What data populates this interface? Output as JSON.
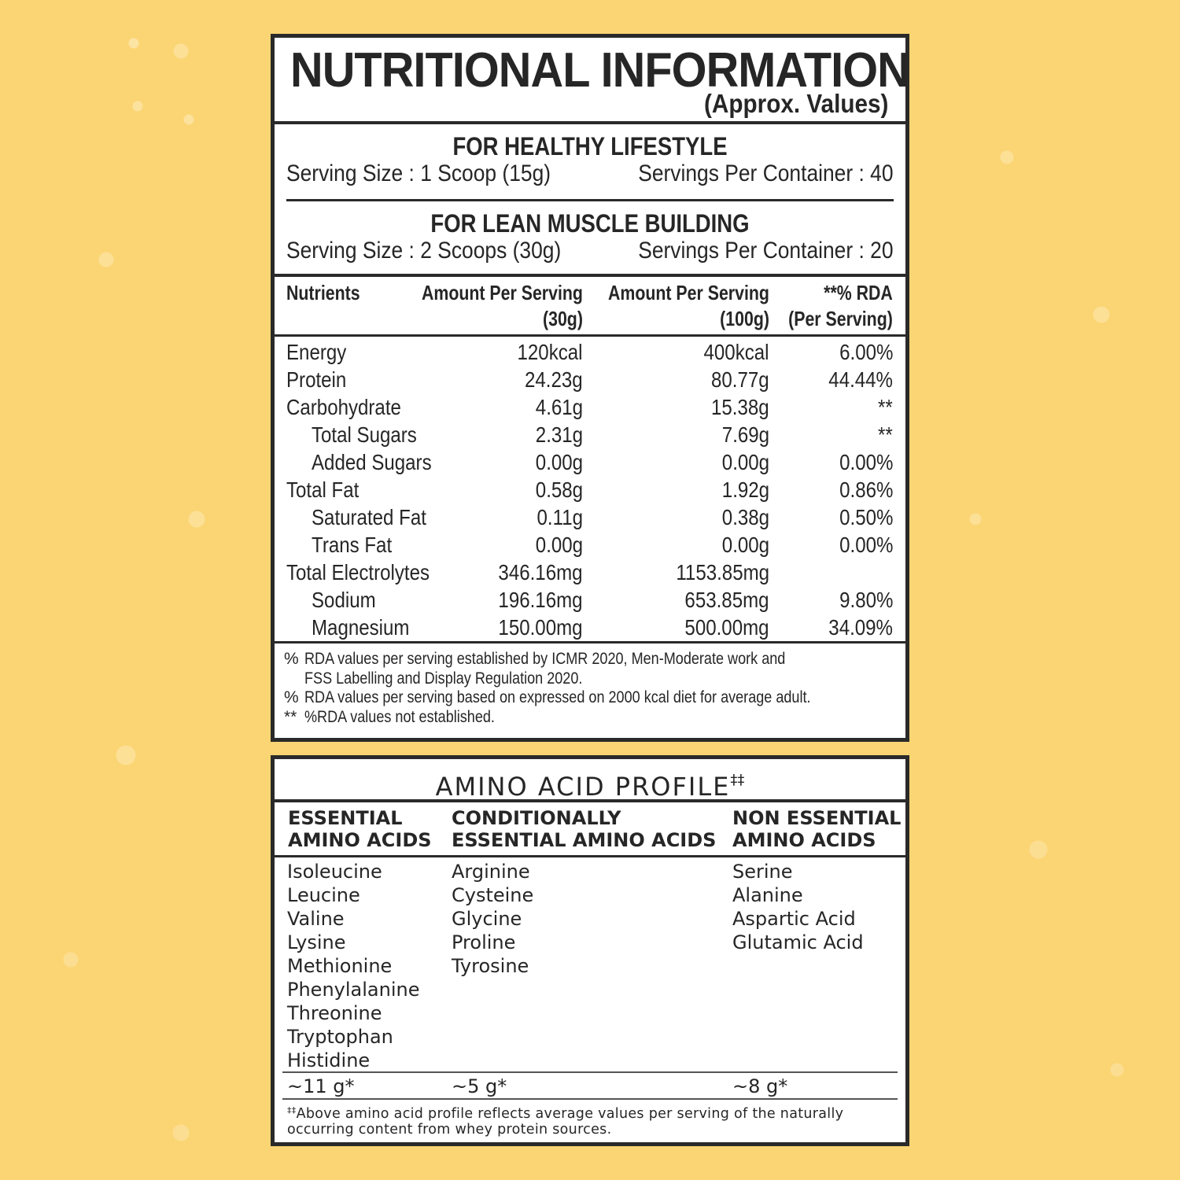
{
  "background": {
    "color": "#fbd573"
  },
  "nutrition": {
    "title": "NUTRITIONAL INFORMATION",
    "subtitle": "(Approx. Values)",
    "serving_sections": [
      {
        "heading": "FOR HEALTHY LIFESTYLE",
        "serving_size": "Serving Size : 1 Scoop (15g)",
        "servings_per_container": "Servings Per Container : 40"
      },
      {
        "heading": "FOR LEAN MUSCLE BUILDING",
        "serving_size": "Serving Size : 2 Scoops (30g)",
        "servings_per_container": "Servings Per Container : 20"
      }
    ],
    "table": {
      "headers": {
        "nutrients": "Nutrients",
        "per_serving_line1": "Amount Per Serving",
        "per_serving_line2": "(30g)",
        "per_100g_line1": "Amount Per Serving",
        "per_100g_line2": "(100g)",
        "rda_line1": "**% RDA",
        "rda_line2": "(Per Serving)"
      },
      "rows": [
        {
          "name": "Energy",
          "per_serving": "120kcal",
          "per_100g": "400kcal",
          "rda": "6.00%",
          "indent": false
        },
        {
          "name": "Protein",
          "per_serving": "24.23g",
          "per_100g": "80.77g",
          "rda": "44.44%",
          "indent": false
        },
        {
          "name": "Carbohydrate",
          "per_serving": "4.61g",
          "per_100g": "15.38g",
          "rda": "**",
          "indent": false
        },
        {
          "name": "Total Sugars",
          "per_serving": "2.31g",
          "per_100g": "7.69g",
          "rda": "**",
          "indent": true
        },
        {
          "name": "Added Sugars",
          "per_serving": "0.00g",
          "per_100g": "0.00g",
          "rda": "0.00%",
          "indent": true
        },
        {
          "name": "Total Fat",
          "per_serving": "0.58g",
          "per_100g": "1.92g",
          "rda": "0.86%",
          "indent": false
        },
        {
          "name": "Saturated Fat",
          "per_serving": "0.11g",
          "per_100g": "0.38g",
          "rda": "0.50%",
          "indent": true
        },
        {
          "name": "Trans Fat",
          "per_serving": "0.00g",
          "per_100g": "0.00g",
          "rda": "0.00%",
          "indent": true
        },
        {
          "name": "Total Electrolytes",
          "per_serving": "346.16mg",
          "per_100g": "1153.85mg",
          "rda": "",
          "indent": false
        },
        {
          "name": "Sodium",
          "per_serving": "196.16mg",
          "per_100g": "653.85mg",
          "rda": "9.80%",
          "indent": true
        },
        {
          "name": "Magnesium",
          "per_serving": "150.00mg",
          "per_100g": "500.00mg",
          "rda": "34.09%",
          "indent": true
        }
      ]
    },
    "footnotes": [
      {
        "mark": "%",
        "text": "RDA values per serving established by ICMR 2020, Men-Moderate work and FSS Labelling and Display Regulation 2020."
      },
      {
        "mark": "%",
        "text": "RDA values per serving based on expressed on 2000 kcal diet for average adult."
      },
      {
        "mark": "**",
        "text": "%RDA values not established."
      }
    ]
  },
  "amino": {
    "title": "AMINO ACID PROFILE",
    "title_mark": "‡‡",
    "columns": [
      {
        "header_line1": "ESSENTIAL",
        "header_line2": "AMINO ACIDS",
        "items": [
          "Isoleucine",
          "Leucine",
          "Valine",
          "Lysine",
          "Methionine",
          "Phenylalanine",
          "Threonine",
          "Tryptophan",
          "Histidine"
        ],
        "total": "~11 g*"
      },
      {
        "header_line1": "CONDITIONALLY",
        "header_line2": "ESSENTIAL AMINO ACIDS",
        "items": [
          "Arginine",
          "Cysteine",
          "Glycine",
          "Proline",
          "Tyrosine"
        ],
        "total": "~5 g*"
      },
      {
        "header_line1": "NON ESSENTIAL",
        "header_line2": "AMINO ACIDS",
        "items": [
          "Serine",
          "Alanine",
          "Aspartic Acid",
          "Glutamic Acid"
        ],
        "total": "~8 g*"
      }
    ],
    "note_mark": "‡‡",
    "note": "Above amino acid profile reflects average values per serving of the naturally occurring content from whey protein sources."
  }
}
